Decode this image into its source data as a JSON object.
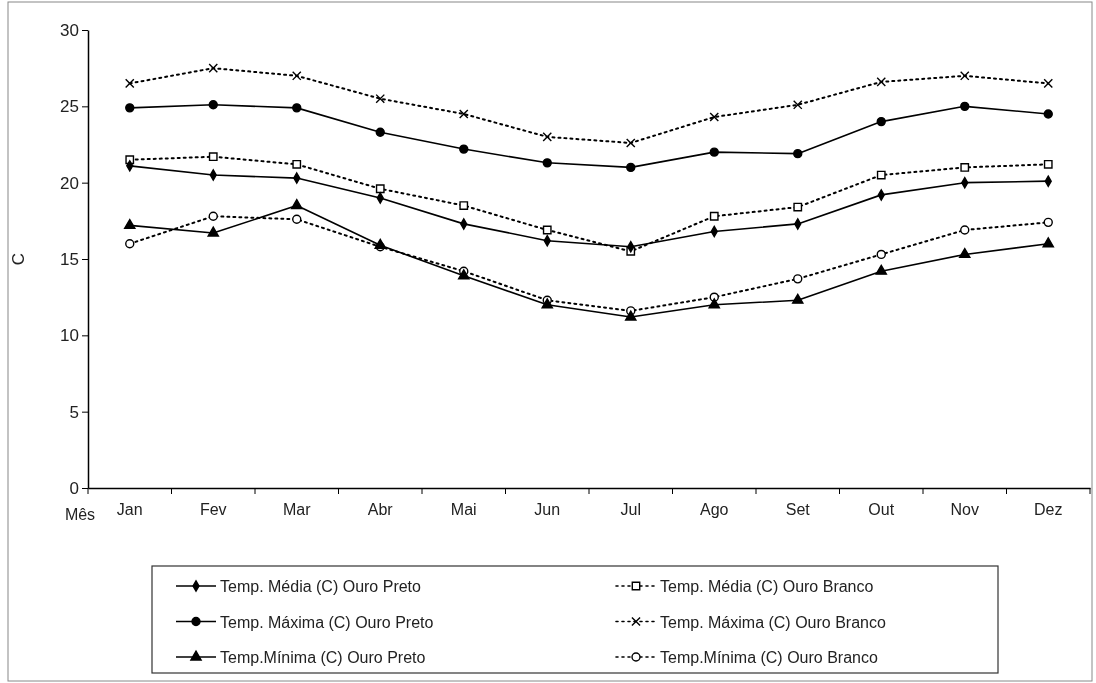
{
  "chart_data": {
    "type": "line",
    "xlabel": "Mês",
    "ylabel": "C",
    "categories": [
      "Jan",
      "Fev",
      "Mar",
      "Abr",
      "Mai",
      "Jun",
      "Jul",
      "Ago",
      "Set",
      "Out",
      "Nov",
      "Dez"
    ],
    "ylim": [
      0,
      30
    ],
    "yticks": [
      0,
      5,
      10,
      15,
      20,
      25,
      30
    ],
    "grid": false,
    "legend": "bottom",
    "series": [
      {
        "name": "Temp. Média (C) Ouro Preto",
        "color": "#000000",
        "marker": "diamond",
        "line_style": "solid",
        "values": [
          21.1,
          20.5,
          20.3,
          19.0,
          17.3,
          16.2,
          15.8,
          16.8,
          17.3,
          19.2,
          20.0,
          20.1
        ]
      },
      {
        "name": "Temp. Média (C) Ouro Branco",
        "color": "#000000",
        "marker": "square",
        "line_style": "dotted",
        "values": [
          21.5,
          21.7,
          21.2,
          19.6,
          18.5,
          16.9,
          15.5,
          17.8,
          18.4,
          20.5,
          21.0,
          21.2
        ]
      },
      {
        "name": "Temp. Máxima (C) Ouro Preto",
        "color": "#000000",
        "marker": "circle",
        "line_style": "solid",
        "values": [
          24.9,
          25.1,
          24.9,
          23.3,
          22.2,
          21.3,
          21.0,
          22.0,
          21.9,
          24.0,
          25.0,
          24.5
        ]
      },
      {
        "name": "Temp. Máxima (C) Ouro Branco",
        "color": "#000000",
        "marker": "cross",
        "line_style": "dotted",
        "values": [
          26.5,
          27.5,
          27.0,
          25.5,
          24.5,
          23.0,
          22.6,
          24.3,
          25.1,
          26.6,
          27.0,
          26.5
        ]
      },
      {
        "name": "Temp.Mínima (C) Ouro Preto",
        "color": "#000000",
        "marker": "triangle",
        "line_style": "solid",
        "values": [
          17.2,
          16.7,
          18.5,
          15.9,
          13.9,
          12.0,
          11.2,
          12.0,
          12.3,
          14.2,
          15.3,
          16.0
        ]
      },
      {
        "name": "Temp.Mínima (C) Ouro Branco",
        "color": "#000000",
        "marker": "circle",
        "line_style": "dotted",
        "values": [
          16.0,
          17.8,
          17.6,
          15.8,
          14.2,
          12.3,
          11.6,
          12.5,
          13.7,
          15.3,
          16.9,
          17.4
        ]
      }
    ]
  }
}
